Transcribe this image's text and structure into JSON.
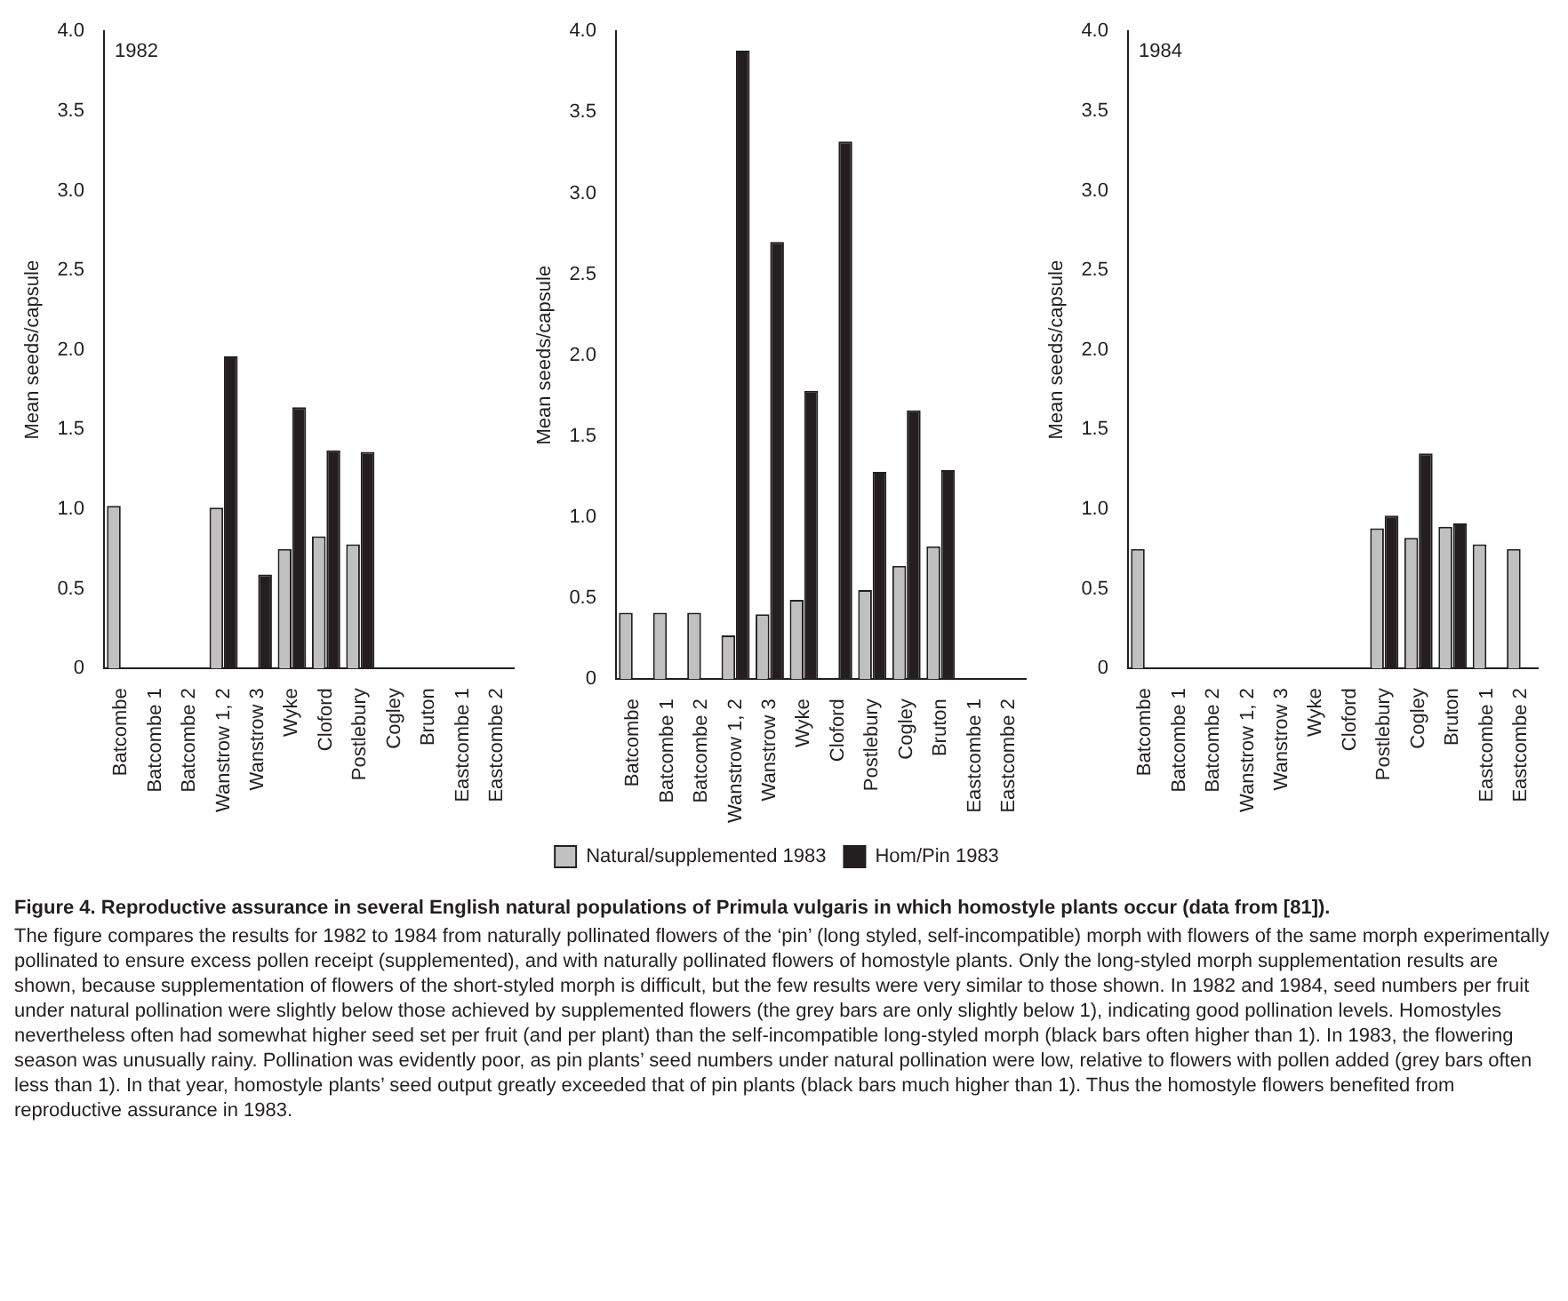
{
  "chart_data": [
    {
      "type": "bar",
      "title": "1982",
      "ylabel": "Mean seeds/capsule",
      "categories": [
        "Batcombe",
        "Batcombe 1",
        "Batcombe 2",
        "Wanstrow 1, 2",
        "Wanstrow 3",
        "Wyke",
        "Cloford",
        "Postlebury",
        "Cogley",
        "Bruton",
        "Eastcombe 1",
        "Eastcombe 2"
      ],
      "series": [
        {
          "color": "#c0c0c0",
          "values": [
            1.02,
            null,
            null,
            1.01,
            null,
            0.75,
            0.83,
            0.78,
            null,
            null,
            null,
            null
          ]
        },
        {
          "color": "#231f20",
          "values": [
            null,
            null,
            null,
            1.96,
            0.59,
            1.64,
            1.37,
            1.36,
            null,
            null,
            null,
            null
          ]
        }
      ],
      "ylim": [
        0,
        4
      ],
      "yticks": [
        0,
        0.5,
        {
          "value": 1,
          "label": "1.0"
        },
        1.5,
        {
          "value": 2,
          "label": "2.0"
        },
        2.5,
        {
          "value": 3,
          "label": "3.0"
        },
        3.5,
        {
          "value": 4,
          "label": "4.0"
        }
      ],
      "grid": false,
      "legend": false
    },
    {
      "type": "bar",
      "ylabel": "Mean seeds/capsule",
      "categories": [
        "Batcombe",
        "Batcombe 1",
        "Batcombe 2",
        "Wanstrow 1, 2",
        "Wanstrow 3",
        "Wyke",
        "Cloford",
        "Postlebury",
        "Cogley",
        "Bruton",
        "Eastcombe 1",
        "Eastcombe 2"
      ],
      "series": [
        {
          "name": "Natural/supplemented 1983",
          "color": "#c0c0c0",
          "values": [
            0.41,
            0.41,
            0.41,
            0.27,
            0.4,
            0.49,
            null,
            0.55,
            0.7,
            0.82,
            null,
            null
          ]
        },
        {
          "name": "Hom/Pin 1983",
          "color": "#231f20",
          "values": [
            null,
            null,
            null,
            3.88,
            2.7,
            1.78,
            3.32,
            1.28,
            1.66,
            1.29,
            null,
            null
          ]
        }
      ],
      "ylim": [
        0,
        4
      ],
      "yticks": [
        0,
        0.5,
        {
          "value": 1,
          "label": "1.0"
        },
        1.5,
        {
          "value": 2,
          "label": "2.0"
        },
        2.5,
        {
          "value": 3,
          "label": "3.0"
        },
        3.5,
        {
          "value": 4,
          "label": "4.0"
        }
      ],
      "grid": false,
      "legend": "bottom"
    },
    {
      "type": "bar",
      "title": "1984",
      "ylabel": "Mean seeds/capsule",
      "categories": [
        "Batcombe",
        "Batcombe 1",
        "Batcombe 2",
        "Wanstrow 1, 2",
        "Wanstrow 3",
        "Wyke",
        "Cloford",
        "Postlebury",
        "Cogley",
        "Bruton",
        "Eastcombe 1",
        "Eastcombe 2"
      ],
      "series": [
        {
          "color": "#c0c0c0",
          "values": [
            0.75,
            null,
            null,
            null,
            null,
            null,
            null,
            0.88,
            0.82,
            0.89,
            0.78,
            0.75
          ]
        },
        {
          "color": "#231f20",
          "values": [
            null,
            null,
            null,
            null,
            null,
            null,
            null,
            0.96,
            1.35,
            0.91,
            null,
            null
          ]
        }
      ],
      "ylim": [
        0,
        4
      ],
      "yticks": [
        0,
        0.5,
        {
          "value": 1,
          "label": "1.0"
        },
        1.5,
        {
          "value": 2,
          "label": "2.0"
        },
        2.5,
        {
          "value": 3,
          "label": "3.0"
        },
        3.5,
        {
          "value": 4,
          "label": "4.0"
        }
      ],
      "grid": false,
      "legend": false,
      "annotations": [
        "Figure 4. Reproductive assurance in several English natural populations of Primula vulgaris in which homostyle plants occur (data from [81]).",
        "The figure compares the results for 1982 to 1984 from naturally pollinated flowers of the ‘pin’ (long styled, self-incompatible) morph with flowers of the same morph experimentally pollinated to ensure excess pollen receipt (supplemented), and with naturally pollinated flowers of homostyle plants. Only the long-styled morph supplementation results are shown, because supplementation of flowers of the short-styled morph is difficult, but the few results were very similar to those shown. In 1982 and 1984, seed numbers per fruit under natural pollination were slightly below those achieved by supplemented flowers (the grey bars are only slightly below 1), indicating good pollination levels. Homostyles nevertheless often had somewhat higher seed set per fruit (and per plant) than the self-incompatible long-styled morph (black bars often higher than 1). In 1983, the flowering season was unusually rainy. Pollination was evidently poor, as pin plants’ seed numbers under natural pollination were low, relative to flowers with pollen added (grey bars often less than 1). In that year, homostyle plants’ seed output greatly exceeded that of pin plants (black bars much higher than 1). Thus the homostyle flowers benefited from reproductive assurance in 1983."
      ]
    }
  ]
}
